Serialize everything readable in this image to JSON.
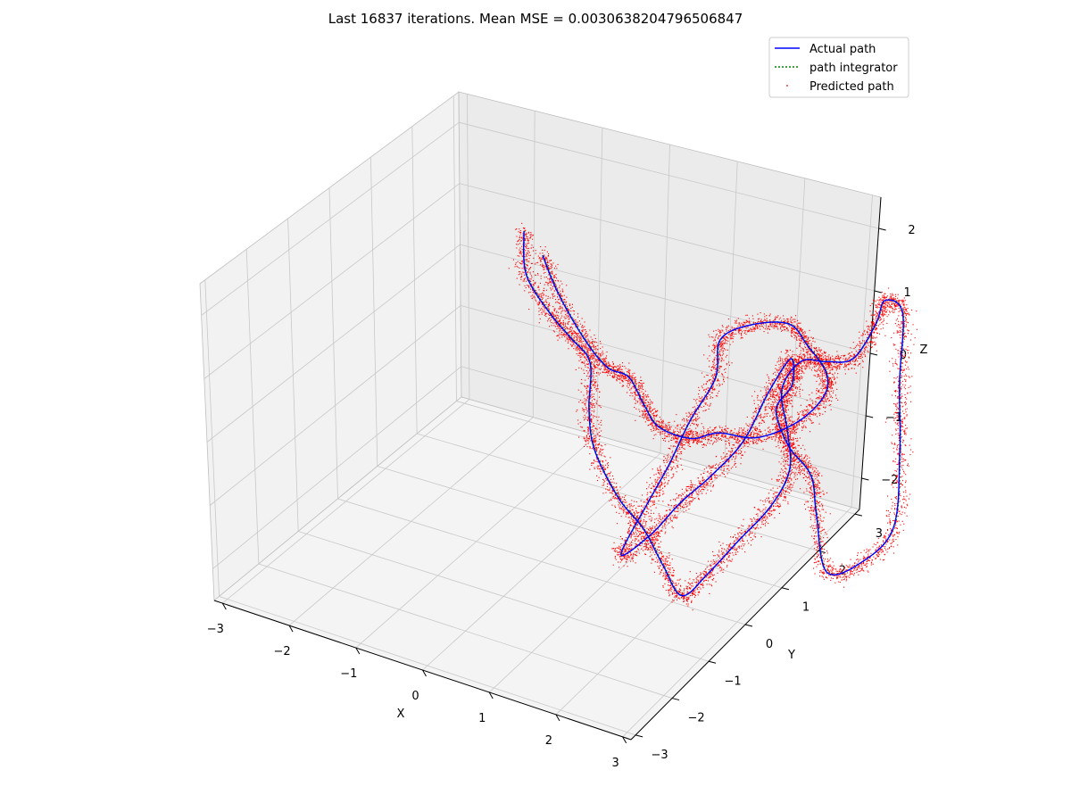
{
  "chart_data": {
    "type": "line",
    "projection": "3d",
    "title": "Last 16837 iterations. Mean MSE = 0.0030638204796506847",
    "xlabel": "X",
    "ylabel": "Y",
    "zlabel": "Z",
    "xlim": [
      -3,
      3
    ],
    "ylim": [
      -3,
      3
    ],
    "zlim": [
      -2.5,
      2.5
    ],
    "x_ticks": [
      "−3",
      "−2",
      "−1",
      "0",
      "1",
      "2",
      "3"
    ],
    "y_ticks": [
      "−3",
      "−2",
      "−1",
      "0",
      "1",
      "2",
      "3"
    ],
    "z_ticks": [
      "−2",
      "−1",
      "0",
      "1",
      "2"
    ],
    "grid": true,
    "legend_position": "top-right",
    "series": [
      {
        "name": "Actual path",
        "style": "solid line",
        "color": "#0000ff"
      },
      {
        "name": "path integrator",
        "style": "dotted line",
        "color": "#008000"
      },
      {
        "name": "Predicted path",
        "style": "points",
        "color": "#ff0000"
      }
    ],
    "path_points": [
      [
        -2.4,
        1.6,
        1.9
      ],
      [
        -2.3,
        1.4,
        1.3
      ],
      [
        -2.1,
        1.6,
        0.6
      ],
      [
        -1.9,
        1.8,
        0.1
      ],
      [
        -1.7,
        1.9,
        -0.3
      ],
      [
        -1.4,
        1.2,
        -0.6
      ],
      [
        -1.1,
        0.7,
        -0.9
      ],
      [
        -0.6,
        0.3,
        -1.3
      ],
      [
        -0.1,
        0.0,
        -1.5
      ],
      [
        0.3,
        -0.3,
        -1.8
      ],
      [
        0.7,
        -0.6,
        -2.0
      ],
      [
        1.0,
        -0.4,
        -1.6
      ],
      [
        1.3,
        -0.1,
        -1.1
      ],
      [
        1.6,
        0.3,
        -0.6
      ],
      [
        1.8,
        0.5,
        0.0
      ],
      [
        1.7,
        0.7,
        0.5
      ],
      [
        1.5,
        1.0,
        1.0
      ],
      [
        1.6,
        1.4,
        1.3
      ],
      [
        1.8,
        1.7,
        1.2
      ],
      [
        2.0,
        2.1,
        1.1
      ],
      [
        2.2,
        2.4,
        1.6
      ],
      [
        2.3,
        2.5,
        2.0
      ],
      [
        2.5,
        2.6,
        1.8
      ],
      [
        2.5,
        2.4,
        0.7
      ],
      [
        2.6,
        2.1,
        -0.3
      ],
      [
        2.7,
        1.6,
        -1.3
      ],
      [
        2.4,
        1.2,
        -1.8
      ],
      [
        2.0,
        1.0,
        -2.0
      ],
      [
        1.8,
        1.2,
        -1.2
      ],
      [
        1.7,
        1.3,
        -0.6
      ],
      [
        1.4,
        1.3,
        -0.2
      ],
      [
        1.2,
        1.4,
        0.3
      ],
      [
        1.3,
        1.7,
        0.6
      ],
      [
        1.2,
        1.9,
        0.9
      ],
      [
        1.0,
        1.6,
        0.4
      ],
      [
        0.8,
        1.2,
        -0.3
      ],
      [
        0.5,
        0.8,
        -0.8
      ],
      [
        0.2,
        0.5,
        -1.2
      ],
      [
        -0.1,
        0.2,
        -1.7
      ],
      [
        -0.4,
        -0.1,
        -2.0
      ],
      [
        -0.2,
        0.3,
        -1.3
      ],
      [
        0.0,
        0.6,
        -0.7
      ],
      [
        0.2,
        0.9,
        0.0
      ],
      [
        0.4,
        1.3,
        0.6
      ],
      [
        0.3,
        1.7,
        1.0
      ],
      [
        0.6,
        2.0,
        1.2
      ],
      [
        1.0,
        2.3,
        1.2
      ],
      [
        1.3,
        2.2,
        1.0
      ],
      [
        1.6,
        2.1,
        0.7
      ],
      [
        1.7,
        1.8,
        0.5
      ],
      [
        1.5,
        1.4,
        0.2
      ],
      [
        1.1,
        1.0,
        0.0
      ],
      [
        0.7,
        0.7,
        0.1
      ],
      [
        0.4,
        0.5,
        0.0
      ],
      [
        0.0,
        0.4,
        0.1
      ],
      [
        -0.4,
        0.8,
        0.1
      ],
      [
        -0.8,
        1.2,
        0.2
      ],
      [
        -1.2,
        1.4,
        0.1
      ],
      [
        -1.6,
        1.6,
        0.3
      ],
      [
        -2.0,
        1.7,
        0.9
      ],
      [
        -2.2,
        1.7,
        1.5
      ]
    ]
  }
}
